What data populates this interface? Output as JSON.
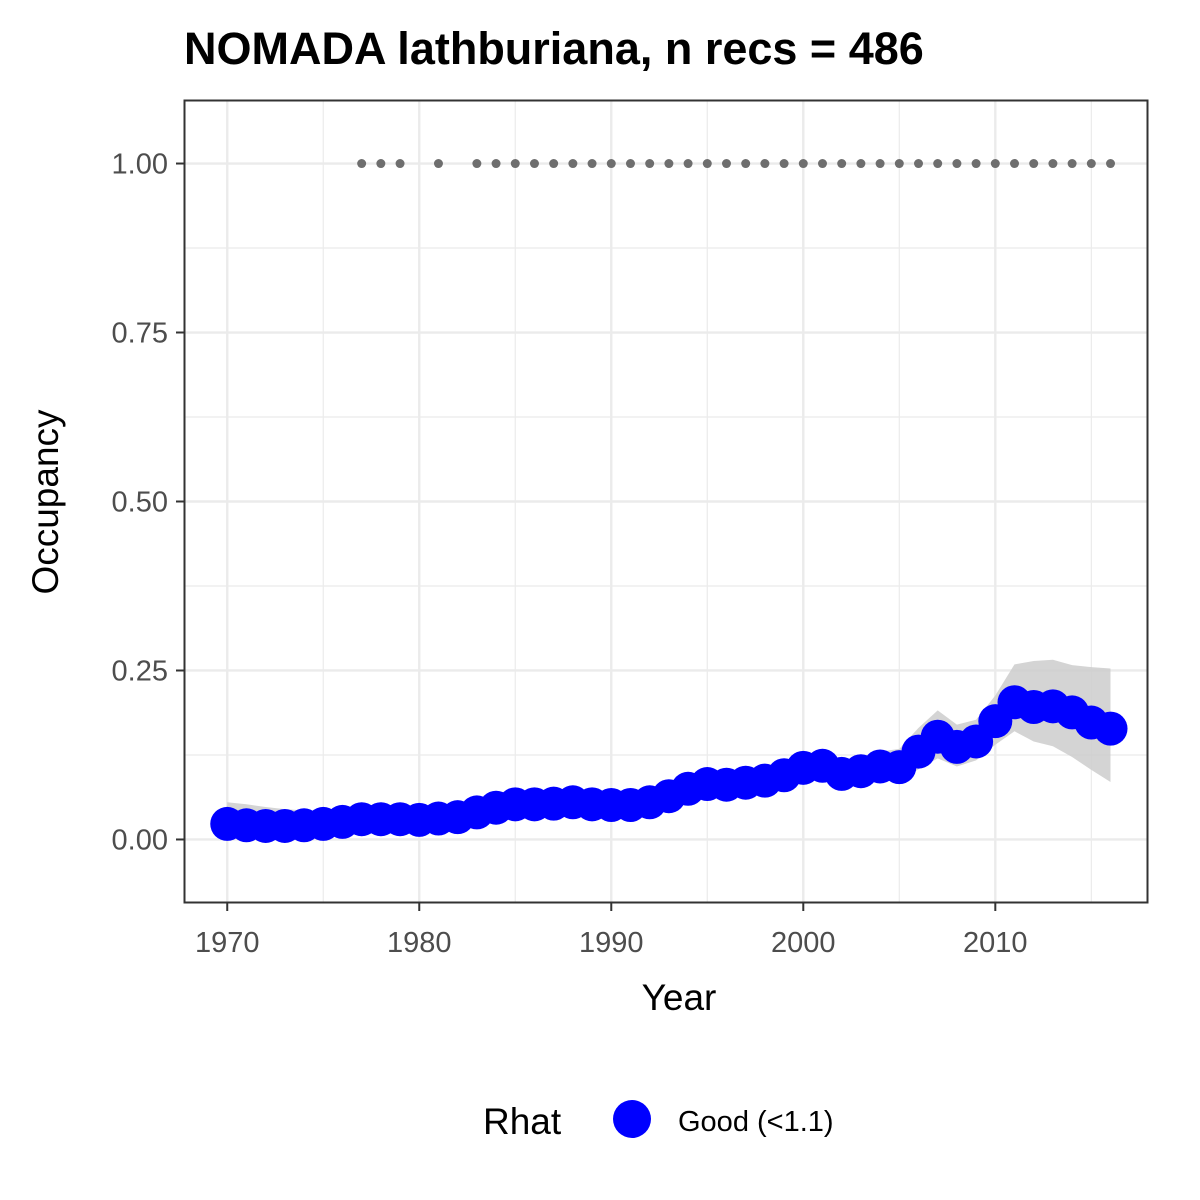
{
  "chart_data": {
    "type": "line",
    "title": "NOMADA lathburiana, n recs = 486",
    "xlabel": "Year",
    "ylabel": "Occupancy",
    "xlim": [
      1967.8,
      2017.9
    ],
    "ylim": [
      -0.0925,
      1.0925
    ],
    "x_ticks": [
      1970,
      1980,
      1990,
      2000,
      2010
    ],
    "x_tick_labels": [
      "1970",
      "1980",
      "1990",
      "2000",
      "2010"
    ],
    "y_ticks": [
      0,
      0.25,
      0.5,
      0.75,
      1.0
    ],
    "y_tick_labels": [
      "0.00",
      "0.25",
      "0.50",
      "0.75",
      "1.00"
    ],
    "grid": true,
    "legend": {
      "title": "Rhat",
      "position": "bottom",
      "items": [
        {
          "label": "Good (<1.1)",
          "color": "#0000ff"
        }
      ]
    },
    "series": [
      {
        "name": "Good (<1.1)",
        "color": "#0000ff",
        "x": [
          1970,
          1971,
          1972,
          1973,
          1974,
          1975,
          1976,
          1977,
          1978,
          1979,
          1980,
          1981,
          1982,
          1983,
          1984,
          1985,
          1986,
          1987,
          1988,
          1989,
          1990,
          1991,
          1992,
          1993,
          1994,
          1995,
          1996,
          1997,
          1998,
          1999,
          2000,
          2001,
          2002,
          2003,
          2004,
          2005,
          2006,
          2007,
          2008,
          2009,
          2010,
          2011,
          2012,
          2013,
          2014,
          2015,
          2016
        ],
        "y": [
          0.023,
          0.021,
          0.02,
          0.02,
          0.021,
          0.023,
          0.026,
          0.03,
          0.03,
          0.03,
          0.029,
          0.031,
          0.033,
          0.04,
          0.047,
          0.052,
          0.052,
          0.053,
          0.055,
          0.052,
          0.051,
          0.051,
          0.055,
          0.064,
          0.075,
          0.082,
          0.081,
          0.084,
          0.087,
          0.095,
          0.106,
          0.109,
          0.097,
          0.101,
          0.108,
          0.107,
          0.13,
          0.152,
          0.137,
          0.145,
          0.175,
          0.203,
          0.196,
          0.197,
          0.188,
          0.173,
          0.164
        ],
        "lower": [
          0.01,
          0.01,
          0.01,
          0.01,
          0.011,
          0.012,
          0.014,
          0.017,
          0.018,
          0.018,
          0.018,
          0.02,
          0.022,
          0.027,
          0.033,
          0.038,
          0.038,
          0.039,
          0.04,
          0.038,
          0.037,
          0.037,
          0.041,
          0.049,
          0.059,
          0.066,
          0.064,
          0.067,
          0.07,
          0.077,
          0.087,
          0.09,
          0.079,
          0.083,
          0.088,
          0.085,
          0.104,
          0.12,
          0.108,
          0.117,
          0.14,
          0.16,
          0.145,
          0.138,
          0.122,
          0.103,
          0.085
        ],
        "upper": [
          0.055,
          0.052,
          0.048,
          0.045,
          0.043,
          0.042,
          0.042,
          0.044,
          0.043,
          0.043,
          0.043,
          0.045,
          0.047,
          0.055,
          0.062,
          0.068,
          0.068,
          0.068,
          0.07,
          0.067,
          0.066,
          0.067,
          0.071,
          0.08,
          0.091,
          0.099,
          0.099,
          0.102,
          0.106,
          0.114,
          0.126,
          0.13,
          0.117,
          0.12,
          0.13,
          0.134,
          0.165,
          0.191,
          0.17,
          0.177,
          0.213,
          0.259,
          0.264,
          0.266,
          0.258,
          0.255,
          0.253
        ]
      }
    ],
    "records_years": [
      1977,
      1978,
      1979,
      1981,
      1983,
      1984,
      1985,
      1986,
      1987,
      1988,
      1989,
      1990,
      1991,
      1992,
      1993,
      1994,
      1995,
      1996,
      1997,
      1998,
      1999,
      2000,
      2001,
      2002,
      2003,
      2004,
      2005,
      2006,
      2007,
      2008,
      2009,
      2010,
      2011,
      2012,
      2013,
      2014,
      2015,
      2016
    ],
    "records_value": 1.0,
    "records_color": "#6e6e6e",
    "ci_color": "#cccccc",
    "panel_background": "#ffffff",
    "grid_color": "#ebebeb",
    "border_color": "#333333"
  }
}
